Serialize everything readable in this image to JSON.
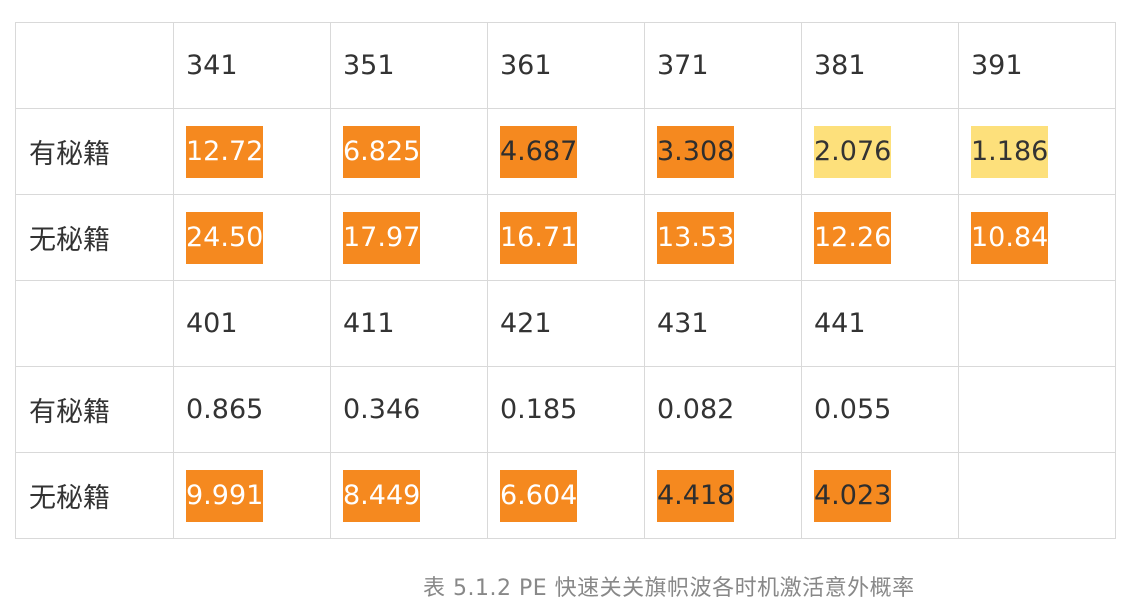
{
  "table": {
    "row_0": [
      "",
      "341",
      "351",
      "361",
      "371",
      "381",
      "391"
    ],
    "row_1": [
      "有秘籍",
      "12.72",
      "6.825",
      "4.687",
      "3.308",
      "2.076",
      "1.186"
    ],
    "row_2": [
      "无秘籍",
      "24.50",
      "17.97",
      "16.71",
      "13.53",
      "12.26",
      "10.84"
    ],
    "row_3": [
      "",
      "401",
      "411",
      "421",
      "431",
      "441",
      ""
    ],
    "row_4": [
      "有秘籍",
      "0.865",
      "0.346",
      "0.185",
      "0.082",
      "0.055",
      ""
    ],
    "row_5": [
      "无秘籍",
      "9.991",
      "8.449",
      "6.604",
      "4.418",
      "4.023",
      ""
    ]
  },
  "highlight_colors": {
    "orange": "#f5891f",
    "yellow": "#fde07b"
  },
  "caption": "表 5.1.2  PE 快速关关旗帜波各时机激活意外概率"
}
